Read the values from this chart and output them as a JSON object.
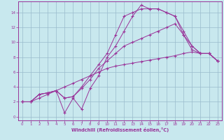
{
  "background_color": "#c8e8ee",
  "line_color": "#993399",
  "grid_color": "#99bbcc",
  "xlabel": "Windchill (Refroidissement éolien,°C)",
  "xlim": [
    -0.5,
    23.5
  ],
  "ylim": [
    -0.5,
    15.5
  ],
  "xticks": [
    0,
    1,
    2,
    3,
    4,
    5,
    6,
    7,
    8,
    9,
    10,
    11,
    12,
    13,
    14,
    15,
    16,
    17,
    18,
    19,
    20,
    21,
    22,
    23
  ],
  "yticks": [
    0,
    2,
    4,
    6,
    8,
    10,
    12,
    14
  ],
  "curve_a_x": [
    0,
    1,
    2,
    3,
    4,
    5,
    6,
    7,
    8,
    9,
    10,
    11,
    12,
    13,
    14,
    15,
    16,
    17,
    18,
    19,
    20,
    21,
    22,
    23
  ],
  "curve_a_y": [
    2.0,
    2.0,
    3.0,
    3.2,
    3.5,
    0.5,
    2.5,
    1.0,
    3.8,
    5.5,
    8.0,
    9.5,
    11.5,
    13.5,
    15.0,
    14.5,
    14.5,
    14.0,
    13.5,
    11.5,
    9.5,
    8.5,
    8.5,
    7.5
  ],
  "curve_b_x": [
    0,
    1,
    2,
    3,
    4,
    5,
    6,
    7,
    8,
    9,
    10,
    11,
    12,
    13,
    14,
    15,
    16,
    17,
    18,
    19,
    20,
    21,
    22,
    23
  ],
  "curve_b_y": [
    2.0,
    2.0,
    3.0,
    3.2,
    3.5,
    2.5,
    2.7,
    4.0,
    5.5,
    7.0,
    8.5,
    11.0,
    13.5,
    14.0,
    14.5,
    14.5,
    14.5,
    14.0,
    13.5,
    11.0,
    9.5,
    8.5,
    8.5,
    7.5
  ],
  "curve_c_x": [
    0,
    1,
    2,
    3,
    4,
    5,
    6,
    7,
    8,
    9,
    10,
    11,
    12,
    13,
    14,
    15,
    16,
    17,
    18,
    19,
    20,
    21,
    22,
    23
  ],
  "curve_c_y": [
    2.0,
    2.0,
    3.0,
    3.2,
    3.5,
    2.5,
    2.7,
    3.8,
    5.0,
    6.5,
    7.5,
    8.5,
    9.5,
    10.0,
    10.5,
    11.0,
    11.5,
    12.0,
    12.5,
    11.0,
    9.0,
    8.5,
    8.5,
    7.5
  ],
  "curve_d_x": [
    0,
    1,
    2,
    3,
    4,
    5,
    6,
    7,
    8,
    9,
    10,
    11,
    12,
    13,
    14,
    15,
    16,
    17,
    18,
    19,
    20,
    21,
    22,
    23
  ],
  "curve_d_y": [
    2.0,
    2.0,
    2.5,
    3.0,
    3.5,
    4.0,
    4.5,
    5.0,
    5.5,
    6.0,
    6.5,
    6.8,
    7.0,
    7.2,
    7.4,
    7.6,
    7.8,
    8.0,
    8.2,
    8.5,
    8.7,
    8.5,
    8.5,
    7.5
  ]
}
